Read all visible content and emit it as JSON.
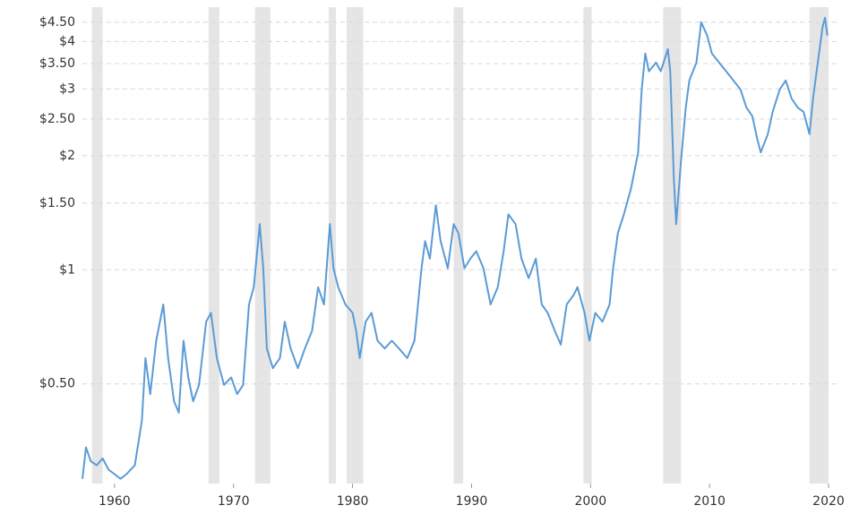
{
  "chart_data": {
    "type": "line",
    "series": [
      {
        "color": "#5b9bd5",
        "x": [
          1957.3,
          1957.6,
          1958.0,
          1958.5,
          1959.0,
          1959.5,
          1960.0,
          1960.5,
          1961.0,
          1961.7,
          1962.3,
          1962.6,
          1963.0,
          1963.5,
          1964.1,
          1964.5,
          1965.0,
          1965.4,
          1965.8,
          1966.2,
          1966.6,
          1967.1,
          1967.7,
          1968.1,
          1968.6,
          1969.2,
          1969.8,
          1970.3,
          1970.8,
          1971.3,
          1971.7,
          1972.2,
          1972.5,
          1972.8,
          1973.3,
          1973.9,
          1974.3,
          1974.8,
          1975.4,
          1976.0,
          1976.6,
          1977.1,
          1977.6,
          1978.1,
          1978.4,
          1978.8,
          1979.4,
          1980.0,
          1980.3,
          1980.6,
          1981.1,
          1981.6,
          1982.1,
          1982.7,
          1983.3,
          1983.9,
          1984.6,
          1985.2,
          1985.8,
          1986.1,
          1986.5,
          1987.0,
          1987.4,
          1988.0,
          1988.5,
          1988.9,
          1989.4,
          1989.9,
          1990.4,
          1991.0,
          1991.6,
          1992.2,
          1992.7,
          1993.1,
          1993.7,
          1994.2,
          1994.8,
          1995.4,
          1995.9,
          1996.4,
          1997.0,
          1997.5,
          1998.0,
          1998.6,
          1998.9,
          1999.5,
          1999.9,
          2000.4,
          2001.0,
          2001.6,
          2001.9,
          2002.3,
          2002.8,
          2003.4,
          2004.0,
          2004.3,
          2004.6,
          2004.9,
          2005.5,
          2005.9,
          2006.5,
          2006.7,
          2007.0,
          2007.2,
          2007.6,
          2008.0,
          2008.3,
          2008.9,
          2009.3,
          2009.8,
          2010.2,
          2010.8,
          2011.4,
          2012.0,
          2012.6,
          2013.1,
          2013.6,
          2014.0,
          2014.3,
          2014.9,
          2015.3,
          2015.9,
          2016.4,
          2016.9,
          2017.4,
          2017.9,
          2018.4,
          2018.7,
          2019.1,
          2019.5,
          2019.7,
          2019.9
        ],
        "values": [
          0.281,
          0.34,
          0.313,
          0.305,
          0.318,
          0.297,
          0.289,
          0.281,
          0.289,
          0.305,
          0.4,
          0.585,
          0.47,
          0.65,
          0.81,
          0.585,
          0.45,
          0.42,
          0.65,
          0.52,
          0.45,
          0.497,
          0.73,
          0.77,
          0.585,
          0.497,
          0.52,
          0.47,
          0.497,
          0.81,
          0.9,
          1.32,
          1.01,
          0.62,
          0.55,
          0.585,
          0.73,
          0.62,
          0.55,
          0.62,
          0.69,
          0.9,
          0.81,
          1.32,
          1.01,
          0.9,
          0.81,
          0.77,
          0.69,
          0.585,
          0.73,
          0.77,
          0.65,
          0.62,
          0.65,
          0.62,
          0.585,
          0.65,
          1.01,
          1.19,
          1.07,
          1.48,
          1.19,
          1.01,
          1.32,
          1.25,
          1.01,
          1.07,
          1.12,
          1.01,
          0.81,
          0.9,
          1.12,
          1.4,
          1.32,
          1.07,
          0.95,
          1.07,
          0.81,
          0.77,
          0.69,
          0.635,
          0.81,
          0.86,
          0.9,
          0.77,
          0.65,
          0.77,
          0.73,
          0.81,
          1.01,
          1.25,
          1.4,
          1.64,
          2.04,
          2.99,
          3.72,
          3.34,
          3.52,
          3.34,
          3.82,
          3.34,
          1.74,
          1.32,
          1.94,
          2.68,
          3.16,
          3.52,
          4.5,
          4.15,
          3.72,
          3.52,
          3.34,
          3.16,
          2.99,
          2.68,
          2.54,
          2.22,
          2.04,
          2.28,
          2.61,
          2.99,
          3.16,
          2.83,
          2.68,
          2.61,
          2.28,
          2.83,
          3.52,
          4.38,
          4.62,
          4.15
        ]
      }
    ],
    "recessions": [
      [
        1958.1,
        1959.0
      ],
      [
        1967.9,
        1968.8
      ],
      [
        1971.8,
        1973.1
      ],
      [
        1978.0,
        1978.6
      ],
      [
        1979.5,
        1980.9
      ],
      [
        1988.5,
        1989.3
      ],
      [
        1999.4,
        2000.1
      ],
      [
        2006.1,
        2007.6
      ],
      [
        2018.4,
        2020.0
      ]
    ],
    "recession_color": "#e5e5e5",
    "xlim": [
      1957.3,
      2020.0
    ],
    "xticks": [
      1960,
      1970,
      1980,
      1990,
      2000,
      2010,
      2020
    ],
    "ylim": [
      0.273,
      4.93
    ],
    "log_scale": true,
    "yticks": [
      {
        "value": 0.5,
        "label": "$0.50"
      },
      {
        "value": 1,
        "label": "$1"
      },
      {
        "value": 1.5,
        "label": "$1.50"
      },
      {
        "value": 2,
        "label": "$2"
      },
      {
        "value": 2.5,
        "label": "$2.50"
      },
      {
        "value": 3,
        "label": "$3"
      },
      {
        "value": 3.5,
        "label": "$3.50"
      },
      {
        "value": 4,
        "label": "$4"
      },
      {
        "value": 4.5,
        "label": "$4.50"
      }
    ],
    "grid": true
  }
}
